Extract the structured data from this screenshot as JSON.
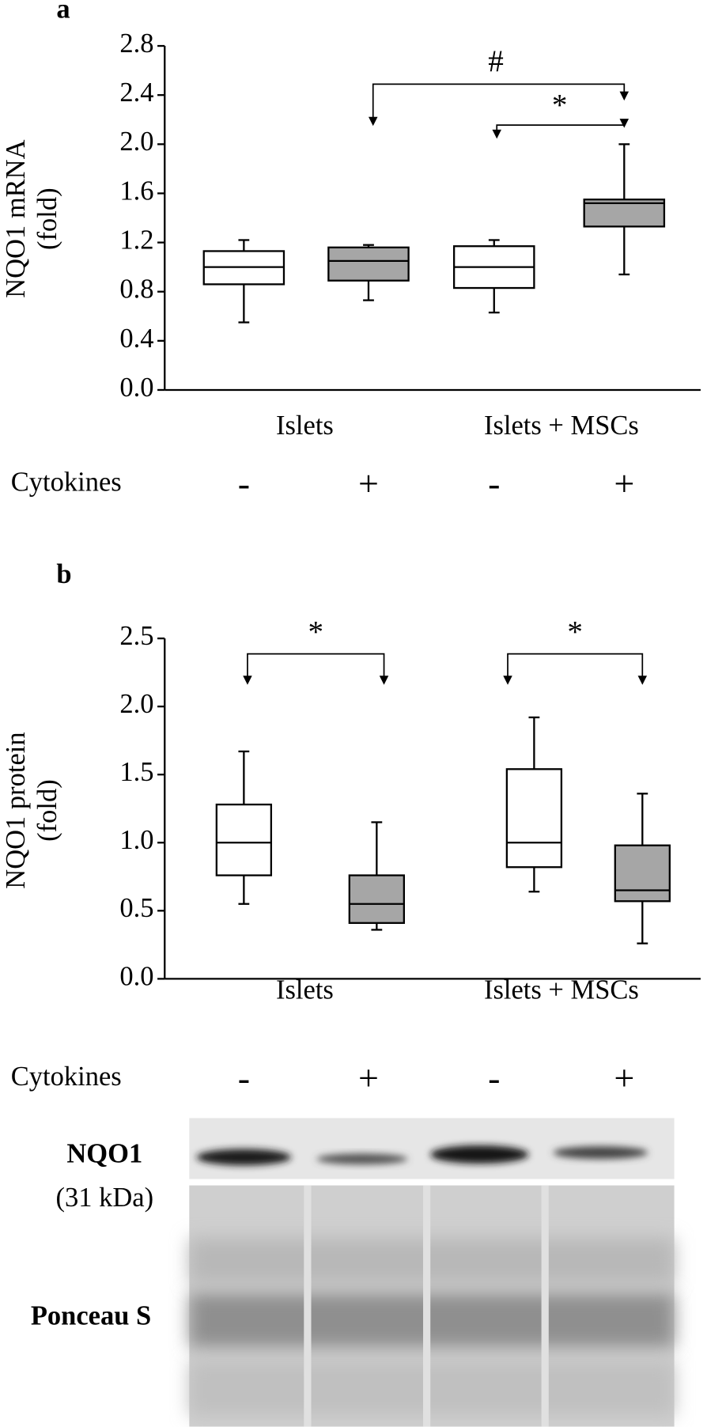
{
  "chart_data": [
    {
      "type": "box",
      "panel": "a",
      "ylabel": [
        "NQO1 mRNA",
        "(fold)"
      ],
      "ylim": [
        0,
        2.8
      ],
      "yticks": [
        {
          "value": 0,
          "label": "0.0"
        },
        0.4,
        0.8,
        1.2,
        1.6,
        {
          "value": 2,
          "label": "2.0"
        },
        2.4,
        2.8
      ],
      "groups": [
        "Islets",
        "Islets + MSCs"
      ],
      "row_label": "Cytokines",
      "categories": [
        "-",
        "+",
        "-",
        "+"
      ],
      "colors": [
        "#ffffff",
        "#a6a6a6",
        "#ffffff",
        "#a6a6a6"
      ],
      "low": [
        0.55,
        0.73,
        0.63,
        0.94
      ],
      "q1": [
        0.86,
        0.89,
        0.83,
        1.33
      ],
      "median": [
        1.0,
        1.05,
        1.0,
        1.52
      ],
      "q3": [
        1.13,
        1.16,
        1.17,
        1.55
      ],
      "high": [
        1.22,
        1.18,
        1.22,
        2.0
      ],
      "annotations": [
        "#",
        "*"
      ]
    },
    {
      "type": "box",
      "panel": "b",
      "ylabel": [
        "NQO1 protein",
        "(fold)"
      ],
      "ylim": [
        0,
        2.5
      ],
      "yticks": [
        {
          "value": 0,
          "label": "0.0"
        },
        0.5,
        {
          "value": 1,
          "label": "1.0"
        },
        1.5,
        {
          "value": 2,
          "label": "2.0"
        },
        2.5
      ],
      "groups": [
        "Islets",
        "Islets + MSCs"
      ],
      "row_label": "Cytokines",
      "categories": [
        "-",
        "+",
        "-",
        "+"
      ],
      "colors": [
        "#ffffff",
        "#a6a6a6",
        "#ffffff",
        "#a6a6a6"
      ],
      "low": [
        0.55,
        0.36,
        0.64,
        0.26
      ],
      "q1": [
        0.76,
        0.41,
        0.82,
        0.57
      ],
      "median": [
        1.0,
        0.55,
        1.0,
        0.65
      ],
      "q3": [
        1.28,
        0.76,
        1.54,
        0.98
      ],
      "high": [
        1.67,
        1.15,
        1.92,
        1.36
      ],
      "annotations": [
        "*",
        "*"
      ]
    }
  ],
  "blot": {
    "protein": "NQO1",
    "size": "(31 kDa)",
    "stain": "Ponceau S"
  }
}
